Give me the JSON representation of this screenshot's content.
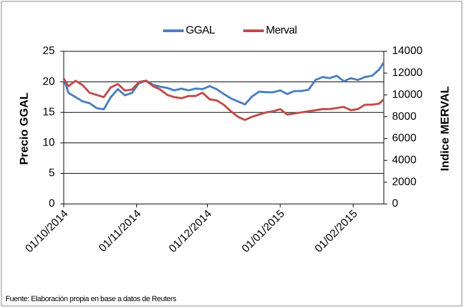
{
  "chart_data": {
    "type": "line",
    "x": [
      "2014-10-01",
      "2014-10-03",
      "2014-10-06",
      "2014-10-09",
      "2014-10-12",
      "2014-10-15",
      "2014-10-18",
      "2014-10-21",
      "2014-10-24",
      "2014-10-27",
      "2014-10-30",
      "2014-11-02",
      "2014-11-05",
      "2014-11-08",
      "2014-11-11",
      "2014-11-14",
      "2014-11-17",
      "2014-11-20",
      "2014-11-23",
      "2014-11-26",
      "2014-11-29",
      "2014-12-02",
      "2014-12-05",
      "2014-12-08",
      "2014-12-11",
      "2014-12-14",
      "2014-12-17",
      "2014-12-20",
      "2014-12-23",
      "2014-12-26",
      "2014-12-29",
      "2015-01-01",
      "2015-01-04",
      "2015-01-07",
      "2015-01-10",
      "2015-01-13",
      "2015-01-16",
      "2015-01-19",
      "2015-01-22",
      "2015-01-25",
      "2015-01-28",
      "2015-01-31",
      "2015-02-03",
      "2015-02-06",
      "2015-02-09",
      "2015-02-12",
      "2015-02-14"
    ],
    "series": [
      {
        "name": "GGAL",
        "color": "#4a7ebb",
        "values": [
          20.5,
          18.2,
          17.5,
          16.8,
          16.5,
          15.7,
          15.5,
          17.5,
          18.8,
          17.8,
          18.2,
          19.8,
          20.2,
          19.5,
          19.2,
          19.0,
          18.6,
          18.9,
          18.6,
          18.9,
          18.8,
          19.3,
          18.8,
          18.0,
          17.3,
          16.8,
          16.3,
          17.6,
          18.4,
          18.3,
          18.3,
          18.6,
          18.0,
          18.5,
          18.5,
          18.7,
          20.3,
          20.8,
          20.6,
          21.0,
          20.1,
          20.6,
          20.3,
          20.8,
          21.0,
          22.0,
          23.2
        ]
      },
      {
        "name": "Merval",
        "color": "#be4b48",
        "axis": "y2",
        "values": [
          11500,
          10800,
          11300,
          10900,
          10200,
          10000,
          9800,
          10700,
          11000,
          10400,
          10500,
          11200,
          11300,
          10800,
          10500,
          10000,
          9800,
          9700,
          9900,
          9900,
          10200,
          9600,
          9500,
          9100,
          8500,
          8000,
          7700,
          8000,
          8200,
          8400,
          8500,
          8700,
          8200,
          8300,
          8400,
          8500,
          8600,
          8700,
          8700,
          8800,
          8900,
          8600,
          8700,
          9100,
          9100,
          9200,
          9600
        ]
      }
    ],
    "y_label": "Precio GGAL",
    "y2_label": "Indice MERVAL",
    "xlim": [
      "2014-10-01",
      "2015-02-14"
    ],
    "xticks": [
      {
        "value": "2014-10-01",
        "label": "01/10/2014"
      },
      {
        "value": "2014-11-01",
        "label": "01/11/2014"
      },
      {
        "value": "2014-12-01",
        "label": "01/12/2014"
      },
      {
        "value": "2015-01-01",
        "label": "01/01/2015"
      },
      {
        "value": "2015-02-01",
        "label": "01/02/2015"
      }
    ],
    "ylim": [
      0,
      25
    ],
    "yticks": [
      0,
      5,
      10,
      15,
      20,
      25
    ],
    "y2lim": [
      0,
      14000
    ],
    "y2ticks": [
      0,
      2000,
      4000,
      6000,
      8000,
      10000,
      12000,
      14000
    ],
    "grid": true,
    "legend": "top",
    "source": "Fuente: Elaboración propia en base a datos de Reuters"
  }
}
